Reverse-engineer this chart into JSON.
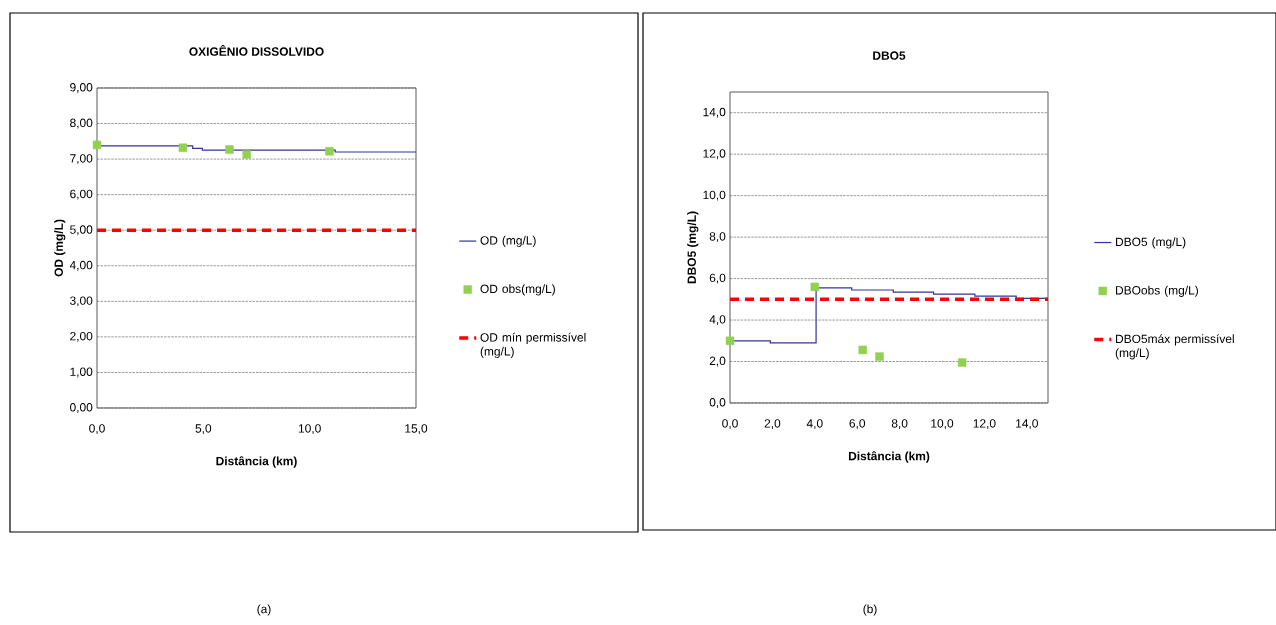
{
  "chart_data": [
    {
      "type": "step",
      "title": "OXIGÊNIO DISSOLVIDO",
      "xlabel": "Distância (km)",
      "ylabel": "OD (mg/L)",
      "annotations": [
        "(a)"
      ],
      "xlim": [
        0,
        15
      ],
      "ylim": [
        0,
        9
      ],
      "xticks": [
        {
          "value": 0,
          "label": "0,0"
        },
        {
          "value": 5,
          "label": "5,0"
        },
        {
          "value": 10,
          "label": "10,0"
        },
        {
          "value": 15,
          "label": "15,0"
        }
      ],
      "yticks": [
        {
          "value": 0,
          "label": "0,00"
        },
        {
          "value": 1,
          "label": "1,00"
        },
        {
          "value": 2,
          "label": "2,00"
        },
        {
          "value": 3,
          "label": "3,00"
        },
        {
          "value": 4,
          "label": "4,00"
        },
        {
          "value": 5,
          "label": "5,00"
        },
        {
          "value": 6,
          "label": "6,00"
        },
        {
          "value": 7,
          "label": "7,00"
        },
        {
          "value": 8,
          "label": "8,00"
        },
        {
          "value": 9,
          "label": "9,00"
        }
      ],
      "grid": "y",
      "legend": "right",
      "series": [
        {
          "name": "OD (mg/L)",
          "color": "#333399",
          "x": [
            0,
            4.5,
            4.95,
            11.2,
            15
          ],
          "values": [
            7.37,
            7.3,
            7.25,
            7.2,
            7.2
          ]
        },
        {
          "name": "OD obs(mg/L)",
          "type": "scatter",
          "marker": "square",
          "color": "#92d050",
          "x": [
            0,
            4.04,
            6.23,
            7.04,
            10.93
          ],
          "values": [
            7.4,
            7.32,
            7.27,
            7.13,
            7.22
          ]
        }
      ],
      "ref_lines": [
        {
          "axis": "y",
          "value": 5,
          "label": "OD mín permissível (mg/L)",
          "color": "#ff0000",
          "line_style": "dashed"
        }
      ]
    },
    {
      "type": "step",
      "title": "DBO5",
      "xlabel": "Distância (km)",
      "ylabel": "DBO5 (mg/L)",
      "annotations": [
        "(b)"
      ],
      "xlim": [
        0,
        15
      ],
      "ylim": [
        0,
        15
      ],
      "xticks": [
        {
          "value": 0,
          "label": "0,0"
        },
        {
          "value": 2,
          "label": "2,0"
        },
        {
          "value": 4,
          "label": "4,0"
        },
        {
          "value": 6,
          "label": "6,0"
        },
        {
          "value": 8,
          "label": "8,0"
        },
        {
          "value": 10,
          "label": "10,0"
        },
        {
          "value": 12,
          "label": "12,0"
        },
        {
          "value": 14,
          "label": "14,0"
        }
      ],
      "yticks": [
        {
          "value": 0,
          "label": "0,0"
        },
        {
          "value": 2,
          "label": "2,0"
        },
        {
          "value": 4,
          "label": "4,0"
        },
        {
          "value": 6,
          "label": "6,0"
        },
        {
          "value": 8,
          "label": "8,0"
        },
        {
          "value": 10,
          "label": "10,0"
        },
        {
          "value": 12,
          "label": "12,0"
        },
        {
          "value": 14,
          "label": "14,0"
        }
      ],
      "grid": "y",
      "legend": "right",
      "series": [
        {
          "name": "DBO5 (mg/L)",
          "color": "#333399",
          "x": [
            0,
            1.9,
            4.06,
            5.74,
            7.7,
            9.6,
            11.55,
            13.5,
            15
          ],
          "values": [
            3.0,
            2.9,
            5.55,
            5.45,
            5.35,
            5.25,
            5.15,
            5.05,
            5.05
          ]
        },
        {
          "name": "DBOobs (mg/L)",
          "type": "scatter",
          "marker": "square",
          "color": "#92d050",
          "x": [
            0,
            4.0,
            6.26,
            7.05,
            10.95
          ],
          "values": [
            3.0,
            5.6,
            2.56,
            2.24,
            1.95
          ]
        }
      ],
      "ref_lines": [
        {
          "axis": "y",
          "value": 5,
          "label": "DBO5máx permissível (mg/L)",
          "color": "#ff0000",
          "line_style": "dashed"
        }
      ]
    }
  ]
}
